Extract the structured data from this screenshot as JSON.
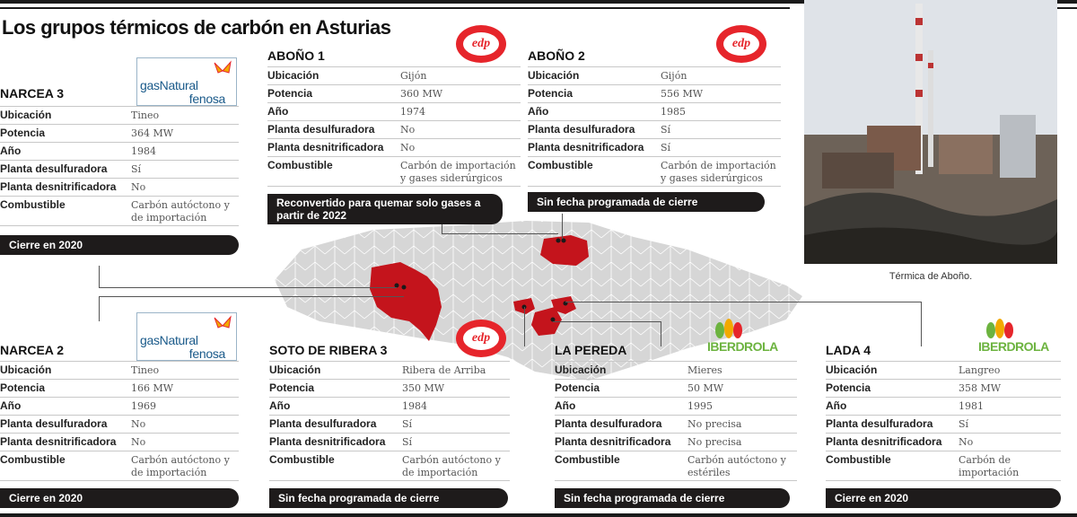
{
  "title": "Los grupos térmicos de carbón en Asturias",
  "photo_caption": "Térmica de Aboño.",
  "plants": {
    "narcea3": {
      "name": "NARCEA 3",
      "logo": "gasNatural fenosa",
      "rows": [
        {
          "k": "Ubicación",
          "v": "Tineo"
        },
        {
          "k": "Potencia",
          "v": "364 MW"
        },
        {
          "k": "Año",
          "v": "1984"
        },
        {
          "k": "Planta desulfuradora",
          "v": "Sí"
        },
        {
          "k": "Planta desnitrificadora",
          "v": "No"
        },
        {
          "k": "Combustible",
          "v": "Carbón autóctono y de importación"
        }
      ],
      "status": "Cierre en 2020"
    },
    "abono1": {
      "name": "ABOÑO 1",
      "logo": "edp",
      "rows": [
        {
          "k": "Ubicación",
          "v": "Gijón"
        },
        {
          "k": "Potencia",
          "v": "360 MW"
        },
        {
          "k": "Año",
          "v": "1974"
        },
        {
          "k": "Planta desulfuradora",
          "v": "No"
        },
        {
          "k": "Planta desnitrificadora",
          "v": "No"
        },
        {
          "k": "Combustible",
          "v": "Carbón de importación y gases siderúrgicos"
        }
      ],
      "status": "Reconvertido para quemar solo gases a partir de 2022"
    },
    "abono2": {
      "name": "ABOÑO 2",
      "logo": "edp",
      "rows": [
        {
          "k": "Ubicación",
          "v": "Gijón"
        },
        {
          "k": "Potencia",
          "v": "556 MW"
        },
        {
          "k": "Año",
          "v": "1985"
        },
        {
          "k": "Planta desulfuradora",
          "v": "Sí"
        },
        {
          "k": "Planta desnitrificadora",
          "v": "Sí"
        },
        {
          "k": "Combustible",
          "v": "Carbón de importación y gases siderúrgicos"
        }
      ],
      "status": "Sin fecha programada de cierre"
    },
    "narcea2": {
      "name": "NARCEA 2",
      "logo": "gasNatural fenosa",
      "rows": [
        {
          "k": "Ubicación",
          "v": "Tineo"
        },
        {
          "k": "Potencia",
          "v": "166 MW"
        },
        {
          "k": "Año",
          "v": "1969"
        },
        {
          "k": "Planta desulfuradora",
          "v": "No"
        },
        {
          "k": "Planta desnitrificadora",
          "v": "No"
        },
        {
          "k": "Combustible",
          "v": "Carbón autóctono y de importación"
        }
      ],
      "status": "Cierre en 2020"
    },
    "soto3": {
      "name": "SOTO DE RIBERA 3",
      "logo": "edp",
      "rows": [
        {
          "k": "Ubicación",
          "v": "Ribera de Arriba"
        },
        {
          "k": "Potencia",
          "v": "350 MW"
        },
        {
          "k": "Año",
          "v": "1984"
        },
        {
          "k": "Planta desulfuradora",
          "v": "Sí"
        },
        {
          "k": "Planta desnitrificadora",
          "v": "Sí"
        },
        {
          "k": "Combustible",
          "v": "Carbón autóctono y de importación"
        }
      ],
      "status": "Sin fecha programada de cierre"
    },
    "pereda": {
      "name": "LA PEREDA",
      "logo": "IBERDROLA",
      "rows": [
        {
          "k": "Ubicación",
          "v": "Mieres"
        },
        {
          "k": "Potencia",
          "v": "50 MW"
        },
        {
          "k": "Año",
          "v": "1995"
        },
        {
          "k": "Planta desulfuradora",
          "v": "No precisa"
        },
        {
          "k": "Planta desnitrificadora",
          "v": "No precisa"
        },
        {
          "k": "Combustible",
          "v": "Carbón autóctono y estériles"
        }
      ],
      "status": "Sin fecha programada de cierre"
    },
    "lada4": {
      "name": "LADA 4",
      "logo": "IBERDROLA",
      "rows": [
        {
          "k": "Ubicación",
          "v": "Langreo"
        },
        {
          "k": "Potencia",
          "v": "358 MW"
        },
        {
          "k": "Año",
          "v": "1981"
        },
        {
          "k": "Planta desulfuradora",
          "v": "Sí"
        },
        {
          "k": "Planta desnitrificadora",
          "v": "No"
        },
        {
          "k": "Combustible",
          "v": "Carbón de importación"
        }
      ],
      "status": "Cierre en 2020"
    }
  },
  "colors": {
    "dark_bar": "#1e1b1b",
    "map_gray": "#d6d6d6",
    "map_highlight": "#c4141c",
    "edp_red": "#e6252b",
    "iberdrola_green": "#6cb33f",
    "gasnatural_blue": "#1a5a8a"
  }
}
